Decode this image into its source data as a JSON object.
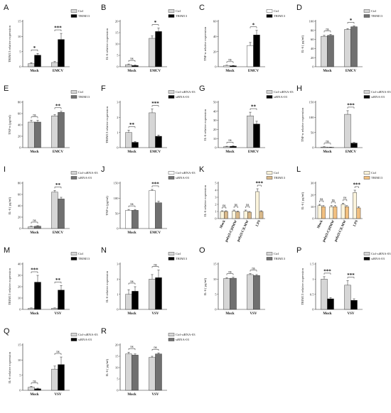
{
  "chart_data": [
    {
      "letter": "A",
      "type": "bar",
      "ylabel": "TRIM13 relative expression",
      "categories": [
        "Mock",
        "EMCV"
      ],
      "ylim": [
        0,
        15
      ],
      "yticks": [
        0,
        5,
        10,
        15
      ],
      "series": [
        {
          "name": "Ctrl",
          "fill": "#d6d6d6",
          "values": [
            1.0,
            1.4
          ],
          "errors": [
            0.3,
            0.3
          ]
        },
        {
          "name": "TRIM13",
          "fill": "#000000",
          "values": [
            3.8,
            9.0
          ],
          "errors": [
            0.6,
            2.0
          ]
        }
      ],
      "sig": [
        {
          "cat": 0,
          "label": "*"
        },
        {
          "cat": 1,
          "label": "***"
        }
      ]
    },
    {
      "letter": "B",
      "type": "bar",
      "ylabel": "IL-6 relative expression",
      "categories": [
        "Mock",
        "EMCV"
      ],
      "ylim": [
        0,
        20
      ],
      "yticks": [
        0,
        5,
        10,
        15,
        20
      ],
      "series": [
        {
          "name": "Ctrl",
          "fill": "#d6d6d6",
          "values": [
            0.9,
            12.5
          ],
          "errors": [
            0.3,
            1.0
          ]
        },
        {
          "name": "TRIM13",
          "fill": "#000000",
          "values": [
            0.5,
            15.5
          ],
          "errors": [
            0.2,
            1.5
          ]
        }
      ],
      "sig": [
        {
          "cat": 0,
          "label": "ns"
        },
        {
          "cat": 1,
          "label": "*"
        }
      ]
    },
    {
      "letter": "C",
      "type": "bar",
      "ylabel": "TNF-α relative expression",
      "categories": [
        "Mock",
        "EMCV"
      ],
      "ylim": [
        0,
        60
      ],
      "yticks": [
        0,
        20,
        40,
        60
      ],
      "series": [
        {
          "name": "Ctrl",
          "fill": "#ffffff",
          "values": [
            1.5,
            28
          ],
          "errors": [
            0.5,
            4
          ]
        },
        {
          "name": "TRIM13",
          "fill": "#000000",
          "values": [
            1.2,
            42
          ],
          "errors": [
            0.5,
            6
          ]
        }
      ],
      "sig": [
        {
          "cat": 0,
          "label": "ns"
        },
        {
          "cat": 1,
          "label": "*"
        }
      ]
    },
    {
      "letter": "D",
      "type": "bar",
      "ylabel": "IL-6 ( pg/ml)",
      "categories": [
        "Mock",
        "EMCV"
      ],
      "ylim": [
        0,
        100
      ],
      "yticks": [
        0,
        20,
        40,
        60,
        80,
        100
      ],
      "series": [
        {
          "name": "Ctrl",
          "fill": "#d6d6d6",
          "values": [
            67,
            82
          ],
          "errors": [
            2,
            2
          ]
        },
        {
          "name": "TRIM13",
          "fill": "#707070",
          "values": [
            69,
            88
          ],
          "errors": [
            2,
            2
          ]
        }
      ],
      "sig": [
        {
          "cat": 0,
          "label": "ns"
        },
        {
          "cat": 1,
          "label": "*"
        }
      ]
    },
    {
      "letter": "E",
      "type": "bar",
      "ylabel": "TNF-α (pg/ml)",
      "categories": [
        "Mock",
        "EMCV"
      ],
      "ylim": [
        0,
        80
      ],
      "yticks": [
        0,
        20,
        40,
        60,
        80
      ],
      "series": [
        {
          "name": "Ctrl",
          "fill": "#d6d6d6",
          "values": [
            45,
            56
          ],
          "errors": [
            3,
            2
          ]
        },
        {
          "name": "TRIM13",
          "fill": "#707070",
          "values": [
            45,
            62
          ],
          "errors": [
            3,
            2
          ]
        }
      ],
      "sig": [
        {
          "cat": 0,
          "label": "ns"
        },
        {
          "cat": 1,
          "label": "**"
        }
      ]
    },
    {
      "letter": "F",
      "type": "bar",
      "ylabel": "TRIM13 relative expression",
      "categories": [
        "Mock",
        "EMCV"
      ],
      "ylim": [
        0,
        3
      ],
      "yticks": [
        0,
        1,
        2,
        3
      ],
      "series": [
        {
          "name": "Ctrl-siRNA-03",
          "fill": "#d6d6d6",
          "values": [
            1.0,
            2.3
          ],
          "errors": [
            0.15,
            0.25
          ]
        },
        {
          "name": "siRNA-03",
          "fill": "#000000",
          "values": [
            0.35,
            0.75
          ],
          "errors": [
            0.05,
            0.08
          ]
        }
      ],
      "sig": [
        {
          "cat": 0,
          "label": "**"
        },
        {
          "cat": 1,
          "label": "***"
        }
      ]
    },
    {
      "letter": "G",
      "type": "bar",
      "ylabel": "IL-6 relative expression",
      "categories": [
        "Mock",
        "EMCV"
      ],
      "ylim": [
        0,
        50
      ],
      "yticks": [
        0,
        10,
        20,
        30,
        40,
        50
      ],
      "series": [
        {
          "name": "Ctrl-siRNA-03",
          "fill": "#d6d6d6",
          "values": [
            1.0,
            35
          ],
          "errors": [
            0.5,
            4
          ]
        },
        {
          "name": "siRNA-03",
          "fill": "#000000",
          "values": [
            1.5,
            26
          ],
          "errors": [
            0.5,
            3
          ]
        }
      ],
      "sig": [
        {
          "cat": 0,
          "label": "ns"
        },
        {
          "cat": 1,
          "label": "**"
        }
      ]
    },
    {
      "letter": "H",
      "type": "bar",
      "ylabel": "TNF-α relative expression",
      "categories": [
        "Mock",
        "EMCV"
      ],
      "ylim": [
        0,
        150
      ],
      "yticks": [
        0,
        50,
        100,
        150
      ],
      "series": [
        {
          "name": "Ctrl-siRNA-03",
          "fill": "#d6d6d6",
          "values": [
            2,
            110
          ],
          "errors": [
            1,
            12
          ]
        },
        {
          "name": "siRNA-03",
          "fill": "#000000",
          "values": [
            1,
            15
          ],
          "errors": [
            0.5,
            2
          ]
        }
      ],
      "sig": [
        {
          "cat": 0,
          "label": "ns"
        },
        {
          "cat": 1,
          "label": "***"
        }
      ]
    },
    {
      "letter": "I",
      "type": "bar",
      "ylabel": "IL-6 ( pg/ml)",
      "categories": [
        "Mock",
        "EMCV"
      ],
      "ylim": [
        0,
        80
      ],
      "yticks": [
        0,
        20,
        40,
        60,
        80
      ],
      "series": [
        {
          "name": "Ctrl-siRNA-03",
          "fill": "#d6d6d6",
          "values": [
            3,
            64
          ],
          "errors": [
            1,
            3
          ]
        },
        {
          "name": "siRNA-03",
          "fill": "#707070",
          "values": [
            4,
            52
          ],
          "errors": [
            1,
            3
          ]
        }
      ],
      "sig": [
        {
          "cat": 0,
          "label": "ns"
        },
        {
          "cat": 1,
          "label": "**"
        }
      ]
    },
    {
      "letter": "J",
      "type": "bar",
      "ylabel": "TNF-α (pg/ml)",
      "categories": [
        "Mock",
        "EMCV"
      ],
      "ylim": [
        0,
        150
      ],
      "yticks": [
        0,
        50,
        100,
        150
      ],
      "series": [
        {
          "name": "Ctrl-siRNA-03",
          "fill": "#ffffff",
          "values": [
            60,
            125
          ],
          "errors": [
            3,
            4
          ]
        },
        {
          "name": "siRNA-03",
          "fill": "#707070",
          "values": [
            60,
            85
          ],
          "errors": [
            3,
            5
          ]
        }
      ],
      "sig": [
        {
          "cat": 0,
          "label": "ns"
        },
        {
          "cat": 1,
          "label": "***"
        }
      ]
    },
    {
      "letter": "K",
      "type": "bar",
      "ylabel": "IL-6 relative expression",
      "categories": [
        "Mock",
        "poly(I:C)HMW",
        "poly(I:C)LMW",
        "LPS"
      ],
      "ylim": [
        0,
        5
      ],
      "yticks": [
        0,
        1,
        2,
        3,
        4,
        5
      ],
      "rotate_x": true,
      "series": [
        {
          "name": "Ctrl",
          "fill": "#fbf4dc",
          "values": [
            1.0,
            1.05,
            1.05,
            3.8
          ],
          "errors": [
            0.1,
            0.15,
            0.15,
            0.4
          ]
        },
        {
          "name": "TRIM13",
          "fill": "#d9b98a",
          "values": [
            1.0,
            0.95,
            0.9,
            1.0
          ],
          "errors": [
            0.1,
            0.1,
            0.1,
            0.1
          ]
        }
      ],
      "sig": [
        {
          "cat": 0,
          "label": "ns"
        },
        {
          "cat": 1,
          "label": "ns"
        },
        {
          "cat": 2,
          "label": "ns"
        },
        {
          "cat": 3,
          "label": "***"
        }
      ]
    },
    {
      "letter": "L",
      "type": "bar",
      "ylabel": "IL-6 ( pg/ml)",
      "categories": [
        "Mock",
        "poly(I:C)HMW",
        "poly(I:C)LMW",
        "LPS"
      ],
      "ylim": [
        0,
        30
      ],
      "yticks": [
        0,
        10,
        20,
        30
      ],
      "rotate_x": true,
      "series": [
        {
          "name": "Ctrl",
          "fill": "#fbf4dc",
          "values": [
            11,
            10,
            12,
            22
          ],
          "errors": [
            1,
            1,
            1,
            2
          ]
        },
        {
          "name": "TRIM13",
          "fill": "#f2c080",
          "values": [
            10,
            10,
            10,
            9
          ],
          "errors": [
            1,
            1,
            1,
            1
          ]
        }
      ],
      "sig": [
        {
          "cat": 0,
          "label": "ns"
        },
        {
          "cat": 1,
          "label": "ns"
        },
        {
          "cat": 2,
          "label": "ns"
        },
        {
          "cat": 3,
          "label": "***"
        }
      ]
    },
    {
      "letter": "M",
      "type": "bar",
      "ylabel": "TRIM13 relative expression",
      "categories": [
        "Mock",
        "VSV"
      ],
      "ylim": [
        0,
        40
      ],
      "yticks": [
        0,
        10,
        20,
        30,
        40
      ],
      "series": [
        {
          "name": "Ctrl",
          "fill": "#d6d6d6",
          "values": [
            1,
            1
          ],
          "errors": [
            0.3,
            0.3
          ]
        },
        {
          "name": "TRIM13",
          "fill": "#000000",
          "values": [
            24,
            17
          ],
          "errors": [
            6,
            4
          ]
        }
      ],
      "sig": [
        {
          "cat": 0,
          "label": "***"
        },
        {
          "cat": 1,
          "label": "**"
        }
      ]
    },
    {
      "letter": "N",
      "type": "bar",
      "ylabel": "IL-6 relative expression",
      "categories": [
        "Mock",
        "VSV"
      ],
      "ylim": [
        0,
        3
      ],
      "yticks": [
        0,
        1,
        2,
        3
      ],
      "series": [
        {
          "name": "Ctrl",
          "fill": "#d6d6d6",
          "values": [
            1.0,
            2.0
          ],
          "errors": [
            0.3,
            0.3
          ]
        },
        {
          "name": "TRIM13",
          "fill": "#000000",
          "values": [
            1.2,
            2.1
          ],
          "errors": [
            0.3,
            0.5
          ]
        }
      ],
      "sig": [
        {
          "cat": 0,
          "label": "ns"
        },
        {
          "cat": 1,
          "label": "ns"
        }
      ]
    },
    {
      "letter": "O",
      "type": "bar",
      "ylabel": "IL-6 ( pg/ml)",
      "categories": [
        "Mock",
        "VSV"
      ],
      "ylim": [
        0,
        15
      ],
      "yticks": [
        0,
        5,
        10,
        15
      ],
      "series": [
        {
          "name": "Ctrl",
          "fill": "#d6d6d6",
          "values": [
            10.2,
            11.5
          ],
          "errors": [
            0.3,
            0.3
          ]
        },
        {
          "name": "TRIM13",
          "fill": "#707070",
          "values": [
            10.3,
            11.2
          ],
          "errors": [
            0.3,
            0.3
          ]
        }
      ],
      "sig": [
        {
          "cat": 0,
          "label": "ns"
        },
        {
          "cat": 1,
          "label": "ns"
        }
      ]
    },
    {
      "letter": "P",
      "type": "bar",
      "ylabel": "TRIM13 relative expression",
      "categories": [
        "Mock",
        "VSV"
      ],
      "ylim": [
        0,
        1.5
      ],
      "yticks": [
        0,
        0.5,
        1,
        1.5
      ],
      "series": [
        {
          "name": "Ctrl-siRNA-03",
          "fill": "#d6d6d6",
          "values": [
            1.0,
            0.8
          ],
          "errors": [
            0.08,
            0.15
          ]
        },
        {
          "name": "siRNA-03",
          "fill": "#000000",
          "values": [
            0.35,
            0.3
          ],
          "errors": [
            0.04,
            0.05
          ]
        }
      ],
      "sig": [
        {
          "cat": 0,
          "label": "***"
        },
        {
          "cat": 1,
          "label": "***"
        }
      ]
    },
    {
      "letter": "Q",
      "type": "bar",
      "ylabel": "IL-6 relative expression",
      "categories": [
        "Mock",
        "VSV"
      ],
      "ylim": [
        0,
        15
      ],
      "yticks": [
        0,
        5,
        10,
        15
      ],
      "series": [
        {
          "name": "Ctrl-siRNA-03",
          "fill": "#d6d6d6",
          "values": [
            1.0,
            7.0
          ],
          "errors": [
            0.3,
            1.0
          ]
        },
        {
          "name": "siRNA-03",
          "fill": "#000000",
          "values": [
            0.5,
            8.5
          ],
          "errors": [
            0.2,
            2.5
          ]
        }
      ],
      "sig": [
        {
          "cat": 0,
          "label": "ns"
        },
        {
          "cat": 1,
          "label": "ns"
        }
      ]
    },
    {
      "letter": "R",
      "type": "bar",
      "ylabel": "IL-6 ( pg/ml)",
      "categories": [
        "Mock",
        "VSV"
      ],
      "ylim": [
        0,
        20
      ],
      "yticks": [
        0,
        5,
        10,
        15,
        20
      ],
      "series": [
        {
          "name": "Ctrl-siRNA-03",
          "fill": "#d6d6d6",
          "values": [
            16,
            14.5
          ],
          "errors": [
            0.8,
            0.5
          ]
        },
        {
          "name": "siRNA-03",
          "fill": "#707070",
          "values": [
            15.5,
            16
          ],
          "errors": [
            0.5,
            0.5
          ]
        }
      ],
      "sig": [
        {
          "cat": 0,
          "label": "ns"
        },
        {
          "cat": 1,
          "label": "ns"
        }
      ]
    }
  ]
}
